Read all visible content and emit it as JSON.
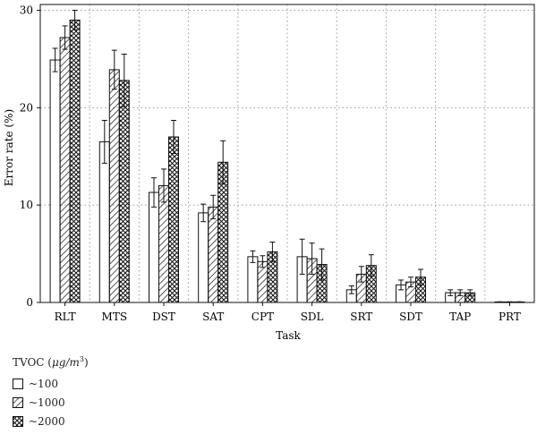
{
  "chart_data": {
    "type": "bar",
    "categories": [
      "RLT",
      "MTS",
      "DST",
      "SAT",
      "CPT",
      "SDL",
      "SRT",
      "SDT",
      "TAP",
      "PRT"
    ],
    "xlabel": "Task",
    "ylabel": "Error rate (%)",
    "ylim": [
      0,
      30.6
    ],
    "yticks": [
      0,
      10,
      20,
      30
    ],
    "grid": true,
    "legend_position": "bottom-left",
    "legend_title_prefix": "TVOC (",
    "legend_title_unit": "μg/m",
    "legend_title_sup": "3",
    "legend_title_suffix": ")",
    "series": [
      {
        "name": "~100",
        "pattern": "none",
        "values": [
          24.9,
          16.5,
          11.3,
          9.2,
          4.7,
          4.7,
          1.3,
          1.8,
          1.0,
          0.05
        ],
        "errors": [
          1.2,
          2.2,
          1.5,
          0.9,
          0.6,
          1.8,
          0.4,
          0.5,
          0.3,
          0.02
        ]
      },
      {
        "name": "~1000",
        "pattern": "diagonal",
        "values": [
          27.2,
          23.9,
          12.0,
          9.8,
          4.2,
          4.5,
          2.9,
          2.1,
          1.0,
          0.05
        ],
        "errors": [
          1.2,
          2.0,
          1.7,
          1.2,
          0.6,
          1.6,
          0.8,
          0.5,
          0.3,
          0.02
        ]
      },
      {
        "name": "~2000",
        "pattern": "crosshatch",
        "values": [
          29.0,
          22.8,
          17.0,
          14.4,
          5.2,
          3.9,
          3.8,
          2.6,
          1.0,
          0.05
        ],
        "errors": [
          1.0,
          2.7,
          1.7,
          2.2,
          1.0,
          1.6,
          1.1,
          0.8,
          0.3,
          0.02
        ]
      }
    ]
  }
}
